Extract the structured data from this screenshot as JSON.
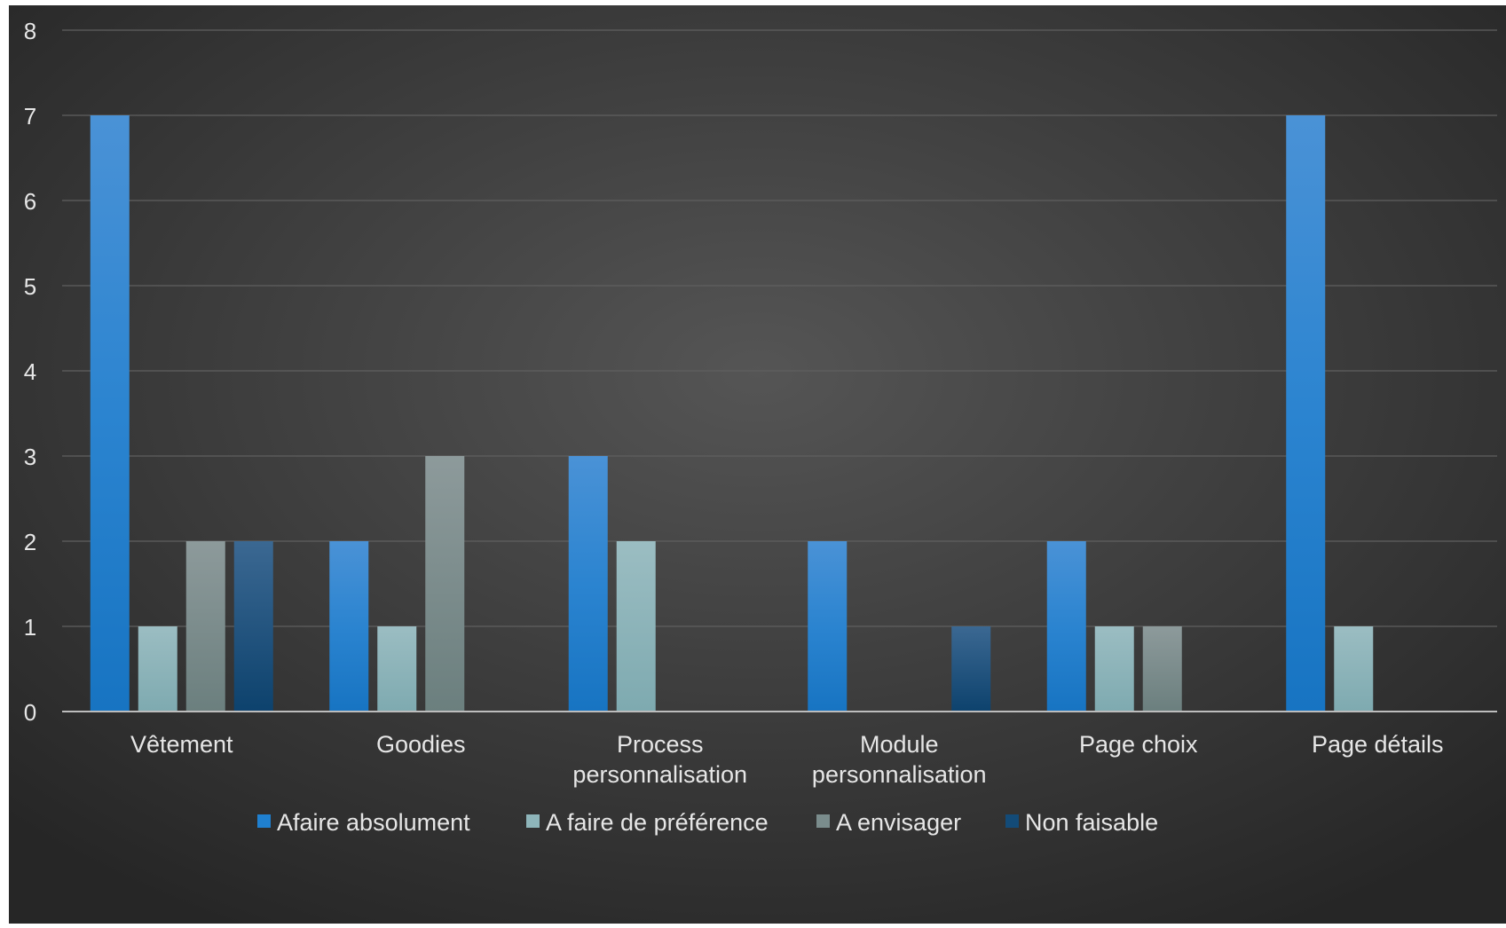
{
  "chart_data": {
    "type": "bar",
    "title": "",
    "xlabel": "",
    "ylabel": "",
    "ylim": [
      0,
      8
    ],
    "yticks": [
      "0",
      "1",
      "2",
      "3",
      "4",
      "5",
      "6",
      "7",
      "8"
    ],
    "grid": true,
    "legend_position": "bottom",
    "categories": [
      [
        "Vêtement"
      ],
      [
        "Goodies"
      ],
      [
        "Process",
        "personnalisation"
      ],
      [
        "Module",
        "personnalisation"
      ],
      [
        "Page choix"
      ],
      [
        "Page détails"
      ]
    ],
    "series": [
      {
        "name": "Afaire absolument",
        "color": "#1f80d0",
        "values": [
          7,
          2,
          3,
          2,
          2,
          7
        ]
      },
      {
        "name": "A faire de préférence",
        "color": "#8eb5ba",
        "values": [
          1,
          1,
          2,
          0,
          1,
          1
        ]
      },
      {
        "name": "A envisager",
        "color": "#7a8c8c",
        "values": [
          2,
          3,
          0,
          0,
          1,
          0
        ]
      },
      {
        "name": "Non faisable",
        "color": "#134b78",
        "values": [
          2,
          0,
          0,
          1,
          0,
          0
        ]
      }
    ]
  }
}
